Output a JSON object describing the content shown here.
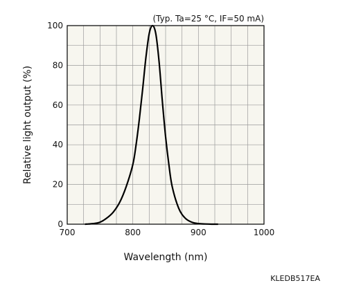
{
  "chart_data": {
    "type": "line",
    "title": "",
    "condition_note": "(Typ. Ta=25 °C, IF=50 mA)",
    "xlabel": "Wavelength (nm)",
    "ylabel": "Relative light output (%)",
    "xlim": [
      700,
      1000
    ],
    "ylim": [
      0,
      100
    ],
    "x_ticks": [
      "700",
      "800",
      "900",
      "1000"
    ],
    "y_ticks": [
      "0",
      "20",
      "40",
      "60",
      "80",
      "100"
    ],
    "grid": true,
    "series": [
      {
        "x": [
          727,
          740,
          750,
          760,
          770,
          780,
          790,
          800,
          805,
          810,
          815,
          820,
          825,
          830,
          835,
          840,
          845,
          850,
          855,
          860,
          870,
          880,
          890,
          900,
          910,
          920,
          930
        ],
        "y": [
          0,
          0.3,
          1,
          3,
          6,
          11,
          19,
          30,
          40,
          53,
          68,
          84,
          96,
          100,
          96,
          82,
          62,
          44,
          30,
          19,
          8,
          3,
          1,
          0.3,
          0.1,
          0,
          0
        ]
      }
    ],
    "code": "KLEDB517EA"
  },
  "colors": {
    "plot_background": "#f7f6ef",
    "grid": "#9a9a9a",
    "line": "#000000"
  }
}
